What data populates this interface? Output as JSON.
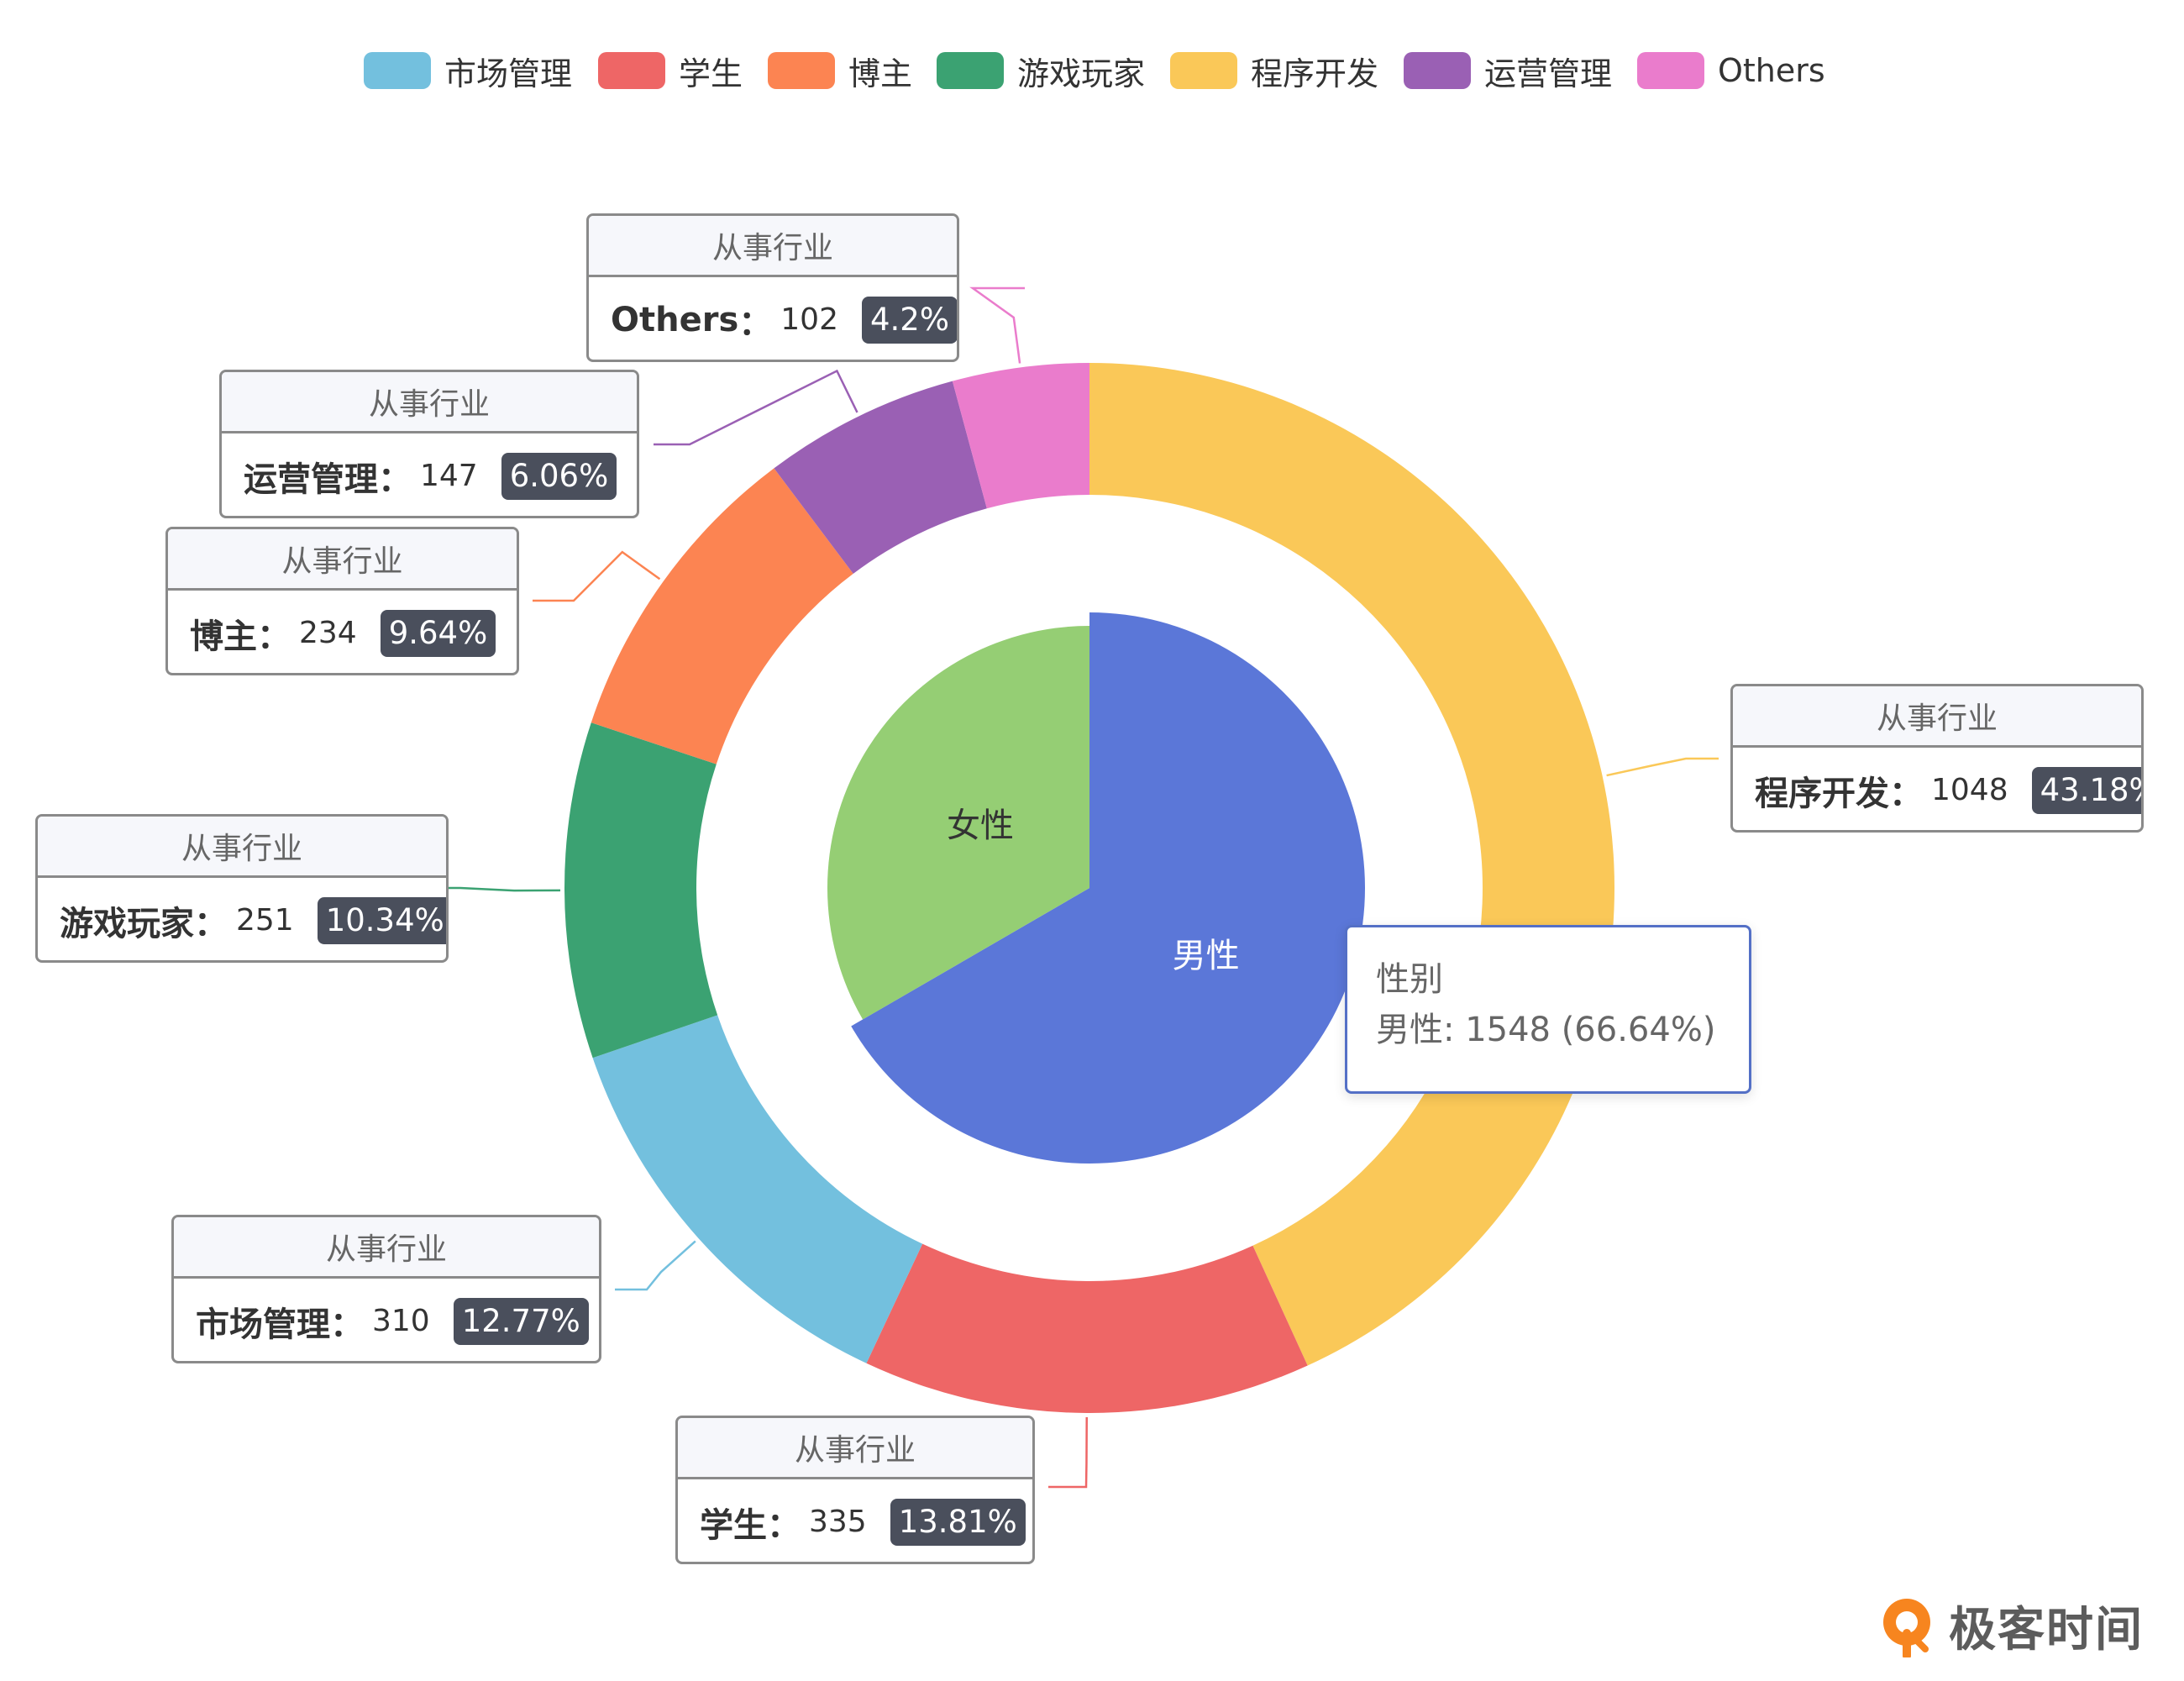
{
  "legend": [
    {
      "label": "市场管理",
      "color": "#73c0de"
    },
    {
      "label": "学生",
      "color": "#ee6666"
    },
    {
      "label": "博主",
      "color": "#fc8452"
    },
    {
      "label": "游戏玩家",
      "color": "#3ba272"
    },
    {
      "label": "程序开发",
      "color": "#fac858"
    },
    {
      "label": "运营管理",
      "color": "#9a60b4"
    },
    {
      "label": "Others",
      "color": "#ea7ccc"
    }
  ],
  "callouts": {
    "header": "从事行业",
    "items": [
      {
        "name": "Others",
        "value": "102",
        "percent": "4.2%"
      },
      {
        "name": "运营管理",
        "value": "147",
        "percent": "6.06%"
      },
      {
        "name": "博主",
        "value": "234",
        "percent": "9.64%"
      },
      {
        "name": "游戏玩家",
        "value": "251",
        "percent": "10.34%"
      },
      {
        "name": "市场管理",
        "value": "310",
        "percent": "12.77%"
      },
      {
        "name": "学生",
        "value": "335",
        "percent": "13.81%"
      },
      {
        "name": "程序开发",
        "value": "1048",
        "percent": "43.18%"
      }
    ]
  },
  "tooltip": {
    "title": "性别",
    "line": "男性: 1548 (66.64%)"
  },
  "brand": {
    "name": "极客时间",
    "icon": "geektime-logo-icon",
    "color": "#f7851f"
  },
  "chart_data": [
    {
      "type": "pie",
      "title": "性别",
      "series": [
        {
          "name": "性别",
          "data": [
            {
              "name": "男性",
              "value": 1548,
              "percent": 66.64,
              "color": "#5b77d8"
            },
            {
              "name": "女性",
              "value": 775,
              "percent": 33.36,
              "color": "#95ce74"
            }
          ]
        }
      ]
    },
    {
      "type": "pie",
      "variant": "donut",
      "title": "从事行业",
      "series": [
        {
          "name": "从事行业",
          "data": [
            {
              "name": "程序开发",
              "value": 1048,
              "percent": 43.18,
              "color": "#fac858"
            },
            {
              "name": "学生",
              "value": 335,
              "percent": 13.81,
              "color": "#ee6666"
            },
            {
              "name": "市场管理",
              "value": 310,
              "percent": 12.77,
              "color": "#73c0de"
            },
            {
              "name": "游戏玩家",
              "value": 251,
              "percent": 10.34,
              "color": "#3ba272"
            },
            {
              "name": "博主",
              "value": 234,
              "percent": 9.64,
              "color": "#fc8452"
            },
            {
              "name": "运营管理",
              "value": 147,
              "percent": 6.06,
              "color": "#9a60b4"
            },
            {
              "name": "Others",
              "value": 102,
              "percent": 4.2,
              "color": "#ea7ccc"
            }
          ]
        }
      ],
      "legend_position": "top-center",
      "label_style": "callout"
    }
  ]
}
